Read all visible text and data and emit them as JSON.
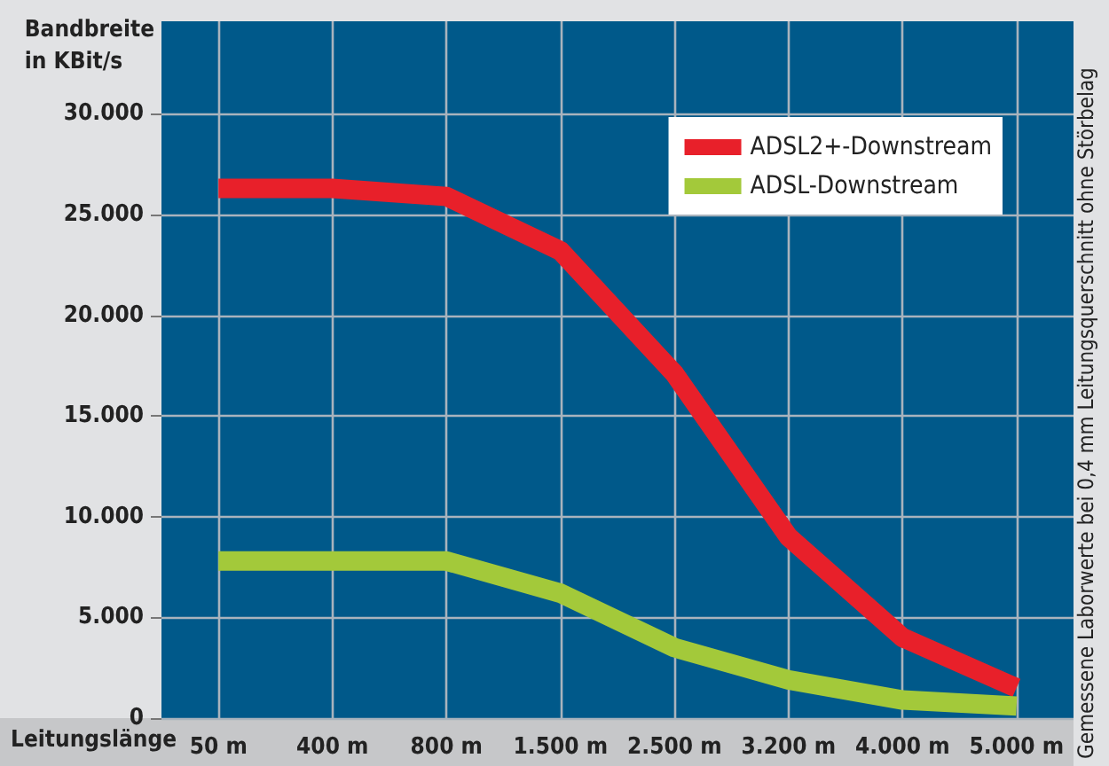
{
  "chart_data": {
    "type": "line",
    "ylabel": "Bandbreite\nin KBit/s",
    "xlabel": "Leitungslänge",
    "annotations": [
      "Gemessene Laborwerte bei 0,4 mm Leitungsquerschnitt ohne Störbelag"
    ],
    "categories": [
      "50 m",
      "400 m",
      "800 m",
      "1.500 m",
      "2.500 m",
      "3.200 m",
      "4.000 m",
      "5.000 m"
    ],
    "series": [
      {
        "name": "ADSL2+-Downstream",
        "color": "#e8202a",
        "values": [
          26300,
          26300,
          25900,
          23200,
          17100,
          9000,
          4000,
          1500
        ]
      },
      {
        "name": "ADSL-Downstream",
        "color": "#a3c93a",
        "values": [
          7800,
          7800,
          7800,
          6200,
          3500,
          1900,
          900,
          600
        ]
      }
    ],
    "ylim": [
      0,
      34600
    ],
    "yticks": [
      {
        "value": 0,
        "label": "0"
      },
      {
        "value": 5000,
        "label": "5.000"
      },
      {
        "value": 10000,
        "label": "10.000"
      },
      {
        "value": 15000,
        "label": "15.000"
      },
      {
        "value": 20000,
        "label": "20.000"
      },
      {
        "value": 25000,
        "label": "25.000"
      },
      {
        "value": 30000,
        "label": "30.000"
      }
    ],
    "grid": true,
    "legend": "top right",
    "marker": "none",
    "line_style": "solid"
  }
}
